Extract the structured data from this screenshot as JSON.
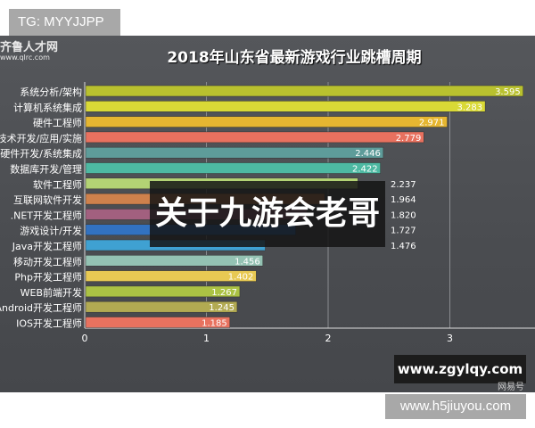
{
  "tg_label": "TG: MYYJJPP",
  "logo": {
    "name": "齐鲁人才网",
    "url": "www.qlrc.com"
  },
  "overlay_text": "关于九游会老哥",
  "watermark_site": "www.zgylqy.com",
  "watermark_source": "网易号",
  "footer_site": "www.h5jiuyou.com",
  "chart_data": {
    "type": "bar",
    "orientation": "horizontal",
    "title": "2018年山东省最新游戏行业跳槽周期",
    "categories": [
      "系统分析/架构",
      "计算机系统集成",
      "硬件工程师",
      "技术开发/应用/实施",
      "硬件开发/系统集成",
      "数据库开发/管理",
      "软件工程师",
      "互联网软件开发",
      ".NET开发工程师",
      "游戏设计/开发",
      "Java开发工程师",
      "移动开发工程师",
      "Php开发工程师",
      "WEB前端开发",
      "Android开发工程师",
      "IOS开发工程师"
    ],
    "values": [
      3.595,
      3.283,
      2.971,
      2.779,
      2.446,
      2.422,
      2.237,
      1.964,
      1.82,
      1.727,
      1.476,
      1.456,
      1.402,
      1.267,
      1.245,
      1.185
    ],
    "colors": [
      "#b9c12f",
      "#d9d936",
      "#e6b631",
      "#e8715f",
      "#5e9c9a",
      "#4db9a2",
      "#b3d374",
      "#cf814c",
      "#a2607f",
      "#3272c1",
      "#3fa1d2",
      "#94c2b3",
      "#e8c953",
      "#abc244",
      "#b2aa52",
      "#e8725f"
    ],
    "xticks": [
      0,
      1,
      2,
      3
    ],
    "xlim": [
      0,
      3.7
    ],
    "grid": true
  }
}
